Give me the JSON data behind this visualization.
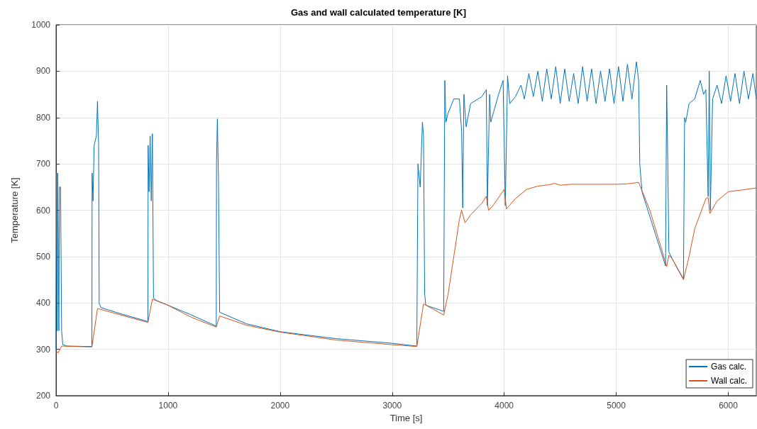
{
  "chart_data": {
    "type": "line",
    "title": "Gas and wall calculated temperature [K]",
    "xlabel": "Time [s]",
    "ylabel": "Temperature [K]",
    "xlim": [
      0,
      6250
    ],
    "xticks": [
      0,
      1000,
      2000,
      3000,
      4000,
      5000,
      6000
    ],
    "ylim": [
      200,
      1000
    ],
    "yticks": [
      200,
      300,
      400,
      500,
      600,
      700,
      800,
      900,
      1000
    ],
    "grid": true,
    "legend": "bottom right",
    "marker": "none",
    "line_style": "solid",
    "series": [
      {
        "name": "Gas calc.",
        "color": "#0072bd",
        "x": [
          0,
          5,
          10,
          15,
          25,
          30,
          40,
          50,
          60,
          100,
          320,
          322,
          330,
          340,
          360,
          370,
          380,
          385,
          400,
          600,
          820,
          822,
          830,
          840,
          850,
          860,
          870,
          900,
          1200,
          1430,
          1432,
          1440,
          1450,
          1460,
          1700,
          2000,
          2500,
          3000,
          3220,
          3230,
          3250,
          3270,
          3280,
          3290,
          3300,
          3460,
          3470,
          3480,
          3500,
          3550,
          3600,
          3620,
          3630,
          3640,
          3660,
          3700,
          3800,
          3840,
          3850,
          3870,
          3880,
          3950,
          3990,
          4010,
          4030,
          4050,
          4100,
          4150,
          4180,
          4220,
          4260,
          4300,
          4340,
          4380,
          4420,
          4460,
          4500,
          4540,
          4580,
          4620,
          4660,
          4700,
          4740,
          4780,
          4820,
          4860,
          4900,
          4940,
          4980,
          5020,
          5060,
          5100,
          5140,
          5180,
          5200,
          5210,
          5230,
          5440,
          5450,
          5460,
          5470,
          5500,
          5600,
          5610,
          5620,
          5650,
          5700,
          5750,
          5780,
          5800,
          5820,
          5830,
          5840,
          5860,
          5900,
          5940,
          5980,
          6020,
          6060,
          6100,
          6140,
          6180,
          6220,
          6250
        ],
        "values": [
          300,
          680,
          340,
          680,
          340,
          650,
          650,
          340,
          310,
          307,
          306,
          680,
          620,
          740,
          760,
          835,
          740,
          400,
          390,
          375,
          360,
          740,
          640,
          760,
          620,
          765,
          410,
          405,
          375,
          350,
          700,
          797,
          660,
          380,
          355,
          338,
          323,
          313,
          307,
          700,
          650,
          790,
          760,
          420,
          395,
          382,
          880,
          790,
          810,
          840,
          840,
          770,
          605,
          850,
          780,
          830,
          845,
          860,
          610,
          850,
          790,
          850,
          880,
          610,
          890,
          830,
          845,
          870,
          840,
          895,
          845,
          900,
          835,
          905,
          840,
          910,
          830,
          905,
          835,
          895,
          830,
          910,
          835,
          905,
          830,
          900,
          835,
          905,
          830,
          910,
          835,
          915,
          840,
          920,
          880,
          700,
          640,
          480,
          870,
          700,
          510,
          495,
          452,
          800,
          790,
          830,
          840,
          880,
          850,
          860,
          630,
          900,
          600,
          840,
          870,
          830,
          890,
          835,
          895,
          830,
          900,
          840,
          895,
          840
        ]
      },
      {
        "name": "Wall calc.",
        "color": "#d95319",
        "x": [
          0,
          20,
          50,
          320,
          370,
          820,
          860,
          1000,
          1200,
          1430,
          1460,
          1700,
          2000,
          2500,
          3000,
          3220,
          3280,
          3460,
          3500,
          3550,
          3600,
          3620,
          3650,
          3700,
          3800,
          3840,
          3860,
          3900,
          4000,
          4020,
          4100,
          4200,
          4300,
          4400,
          4450,
          4500,
          4600,
          4800,
          5000,
          5100,
          5200,
          5300,
          5400,
          5450,
          5470,
          5500,
          5600,
          5650,
          5700,
          5800,
          5820,
          5835,
          5900,
          6000,
          6100,
          6250
        ],
        "values": [
          295,
          293,
          307,
          305,
          388,
          358,
          408,
          395,
          370,
          348,
          372,
          352,
          337,
          320,
          310,
          306,
          398,
          374,
          420,
          500,
          580,
          600,
          573,
          590,
          615,
          630,
          600,
          610,
          645,
          603,
          625,
          645,
          652,
          655,
          658,
          654,
          656,
          656,
          656,
          657,
          660,
          600,
          520,
          478,
          503,
          495,
          450,
          500,
          560,
          625,
          628,
          593,
          620,
          640,
          643,
          648
        ]
      }
    ]
  }
}
